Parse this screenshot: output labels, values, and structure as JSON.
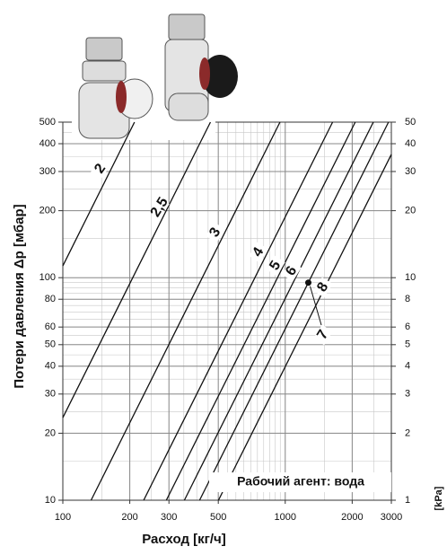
{
  "chart_data": {
    "type": "line",
    "xlabel": "Расход [кг/ч]",
    "ylabel": "Потери давления Δp [мбар]",
    "y2label": "[kPa]",
    "annotation": "Рабочий агент: вода",
    "xscale": "log",
    "yscale": "log",
    "grid": true,
    "minor_grid": true,
    "color": "#111111",
    "xlim": [
      100,
      3000
    ],
    "xticks": [
      100,
      200,
      300,
      500,
      1000,
      2000,
      3000
    ],
    "ylim": [
      10,
      500
    ],
    "yticks": [
      10,
      20,
      30,
      40,
      50,
      60,
      80,
      100,
      200,
      300,
      400,
      500
    ],
    "y2lim": [
      1,
      50
    ],
    "y2ticks": [
      1,
      2,
      3,
      4,
      5,
      6,
      8,
      10,
      20,
      30,
      40,
      50
    ],
    "series": [
      {
        "name": "2",
        "x": [
          100,
          210
        ],
        "values": [
          113,
          500
        ]
      },
      {
        "name": "2,5",
        "x": [
          100,
          461
        ],
        "values": [
          23.5,
          500
        ]
      },
      {
        "name": "3",
        "x": [
          134,
          947
        ],
        "values": [
          10,
          500
        ]
      },
      {
        "name": "4",
        "x": [
          231,
          1633
        ],
        "values": [
          10,
          500
        ]
      },
      {
        "name": "5",
        "x": [
          292,
          2064
        ],
        "values": [
          10,
          500
        ]
      },
      {
        "name": "6",
        "x": [
          352,
          2489
        ],
        "values": [
          10,
          500
        ]
      },
      {
        "name": "7",
        "x": [
          412,
          2913
        ],
        "values": [
          10,
          500
        ]
      },
      {
        "name": "8",
        "x": [
          501,
          3000
        ],
        "values": [
          10,
          358
        ]
      }
    ],
    "marker": {
      "x": 1270,
      "y": 95
    }
  }
}
